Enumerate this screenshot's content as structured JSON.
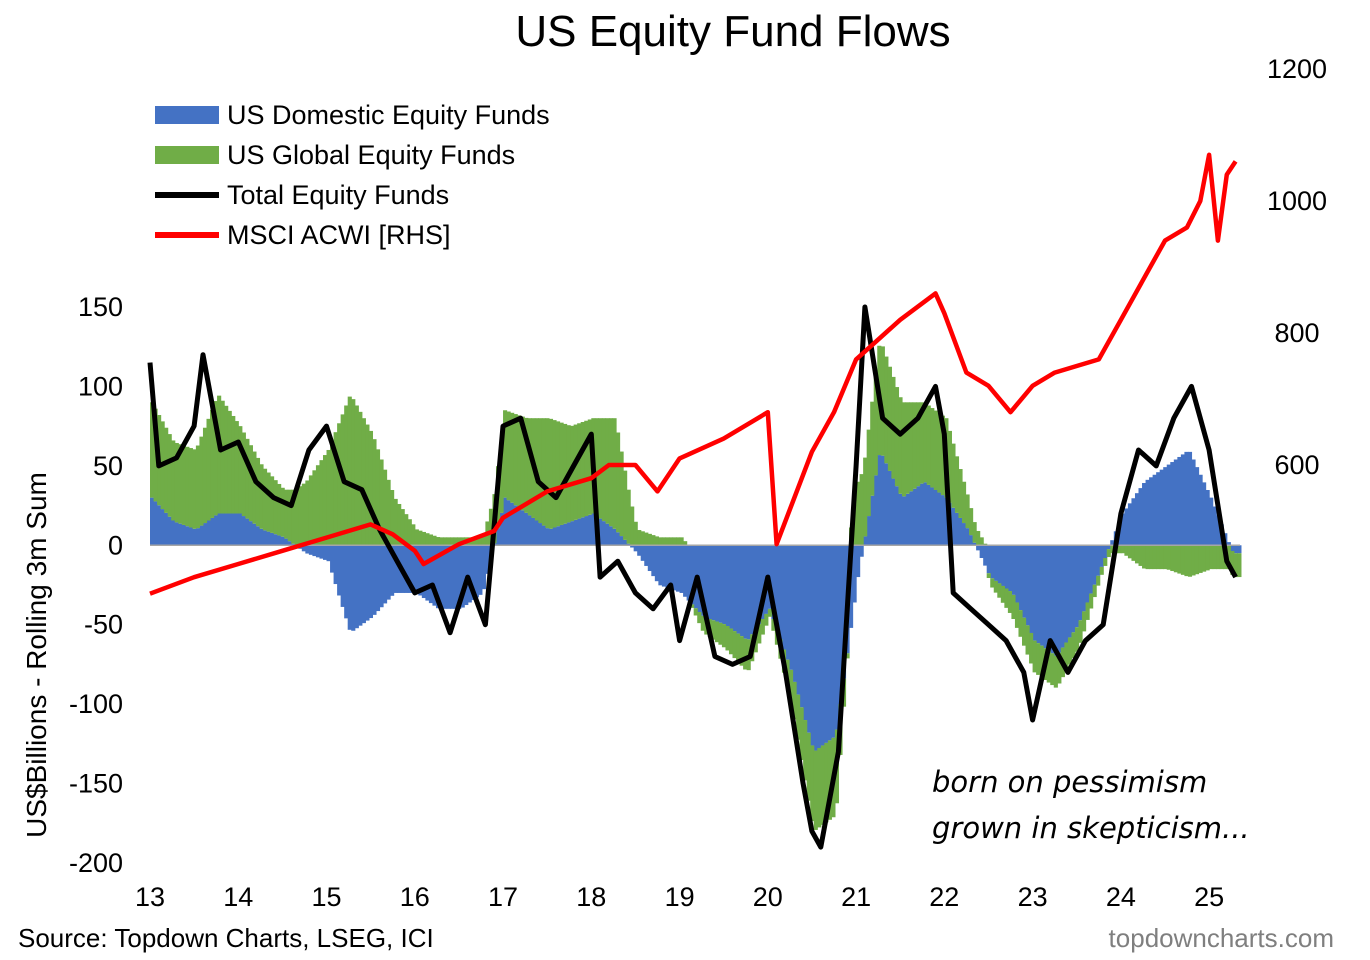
{
  "chart_data": {
    "type": "bar",
    "title": "US Equity Fund Flows",
    "ylabel": "US$Billions - Rolling 3m Sum",
    "ylim": [
      -200,
      150
    ],
    "y_ticks": [
      150,
      100,
      50,
      0,
      -50,
      -100,
      -150,
      -200
    ],
    "y2lim": [
      400,
      1200
    ],
    "y2_ticks": [
      1200,
      1000,
      800,
      600
    ],
    "xlim": [
      2013,
      2025.35
    ],
    "x_ticks": [
      13,
      14,
      15,
      16,
      17,
      18,
      19,
      20,
      21,
      22,
      23,
      24,
      25
    ],
    "legend_position": "top-left",
    "grid": false,
    "legend": [
      {
        "name": "US Domestic Equity Funds",
        "kind": "bar",
        "color": "#4472c4"
      },
      {
        "name": "US Global Equity Funds",
        "kind": "bar",
        "color": "#70ad47"
      },
      {
        "name": "Total Equity Funds",
        "kind": "line",
        "color": "#000000"
      },
      {
        "name": "MSCI ACWI [RHS]",
        "kind": "line",
        "color": "#ff0000"
      }
    ],
    "series": [
      {
        "name": "US Domestic Equity Funds",
        "type": "bar",
        "axis": "left",
        "color": "#4472c4",
        "x": [
          2013.0,
          2013.25,
          2013.5,
          2013.75,
          2014.0,
          2014.25,
          2014.5,
          2014.75,
          2015.0,
          2015.25,
          2015.5,
          2015.75,
          2016.0,
          2016.25,
          2016.5,
          2016.75,
          2017.0,
          2017.25,
          2017.5,
          2017.75,
          2018.0,
          2018.25,
          2018.5,
          2018.75,
          2019.0,
          2019.25,
          2019.5,
          2019.75,
          2020.0,
          2020.25,
          2020.5,
          2020.75,
          2021.0,
          2021.25,
          2021.5,
          2021.75,
          2022.0,
          2022.25,
          2022.5,
          2022.75,
          2023.0,
          2023.25,
          2023.5,
          2023.75,
          2024.0,
          2024.25,
          2024.5,
          2024.75,
          2025.0,
          2025.25
        ],
        "y": [
          30,
          15,
          10,
          20,
          20,
          10,
          5,
          -5,
          -10,
          -55,
          -45,
          -30,
          -30,
          -40,
          -40,
          -30,
          30,
          20,
          10,
          15,
          20,
          10,
          -5,
          -25,
          -30,
          -45,
          -50,
          -60,
          -40,
          -80,
          -130,
          -120,
          -20,
          60,
          30,
          40,
          30,
          10,
          -20,
          -30,
          -60,
          -70,
          -50,
          -15,
          20,
          40,
          50,
          60,
          30,
          -5
        ]
      },
      {
        "name": "US Global Equity Funds",
        "type": "bar",
        "axis": "left",
        "color": "#70ad47",
        "x": [
          2013.0,
          2013.25,
          2013.5,
          2013.75,
          2014.0,
          2014.25,
          2014.5,
          2014.75,
          2015.0,
          2015.25,
          2015.5,
          2015.75,
          2016.0,
          2016.25,
          2016.5,
          2016.75,
          2017.0,
          2017.25,
          2017.5,
          2017.75,
          2018.0,
          2018.25,
          2018.5,
          2018.75,
          2019.0,
          2019.25,
          2019.5,
          2019.75,
          2020.0,
          2020.25,
          2020.5,
          2020.75,
          2021.0,
          2021.25,
          2021.5,
          2021.75,
          2022.0,
          2022.25,
          2022.5,
          2022.75,
          2023.0,
          2023.25,
          2023.5,
          2023.75,
          2024.0,
          2024.25,
          2024.5,
          2024.75,
          2025.0,
          2025.25
        ],
        "y": [
          60,
          50,
          50,
          75,
          55,
          40,
          30,
          40,
          60,
          95,
          70,
          30,
          10,
          5,
          5,
          5,
          55,
          60,
          70,
          60,
          60,
          70,
          10,
          5,
          5,
          -10,
          -15,
          -20,
          -5,
          -20,
          -50,
          -50,
          40,
          70,
          60,
          50,
          50,
          20,
          -5,
          -15,
          -20,
          -20,
          -15,
          -5,
          -5,
          -15,
          -15,
          -20,
          -15,
          -15
        ]
      },
      {
        "name": "Total Equity Funds",
        "type": "line",
        "axis": "left",
        "color": "#000000",
        "x": [
          2013.0,
          2013.1,
          2013.3,
          2013.5,
          2013.6,
          2013.8,
          2014.0,
          2014.2,
          2014.4,
          2014.6,
          2014.8,
          2015.0,
          2015.2,
          2015.4,
          2015.6,
          2015.8,
          2016.0,
          2016.2,
          2016.4,
          2016.6,
          2016.8,
          2017.0,
          2017.2,
          2017.4,
          2017.6,
          2017.8,
          2018.0,
          2018.1,
          2018.3,
          2018.5,
          2018.7,
          2018.9,
          2019.0,
          2019.2,
          2019.4,
          2019.6,
          2019.8,
          2020.0,
          2020.2,
          2020.4,
          2020.5,
          2020.6,
          2020.8,
          2021.0,
          2021.1,
          2021.3,
          2021.5,
          2021.7,
          2021.9,
          2022.0,
          2022.1,
          2022.3,
          2022.5,
          2022.7,
          2022.9,
          2023.0,
          2023.2,
          2023.4,
          2023.6,
          2023.8,
          2024.0,
          2024.2,
          2024.4,
          2024.6,
          2024.8,
          2025.0,
          2025.2,
          2025.3
        ],
        "y": [
          115,
          50,
          55,
          75,
          120,
          60,
          65,
          40,
          30,
          25,
          60,
          75,
          40,
          35,
          10,
          -10,
          -30,
          -25,
          -55,
          -20,
          -50,
          75,
          80,
          40,
          30,
          50,
          70,
          -20,
          -10,
          -30,
          -40,
          -25,
          -60,
          -20,
          -70,
          -75,
          -70,
          -20,
          -80,
          -150,
          -180,
          -190,
          -130,
          50,
          150,
          80,
          70,
          80,
          100,
          70,
          -30,
          -40,
          -50,
          -60,
          -80,
          -110,
          -60,
          -80,
          -60,
          -50,
          20,
          60,
          50,
          80,
          100,
          60,
          -10,
          -20
        ]
      },
      {
        "name": "MSCI ACWI [RHS]",
        "type": "line",
        "axis": "right",
        "color": "#ff0000",
        "x": [
          2013.0,
          2013.5,
          2014.0,
          2014.5,
          2015.0,
          2015.5,
          2015.75,
          2016.0,
          2016.1,
          2016.5,
          2016.9,
          2017.0,
          2017.5,
          2018.0,
          2018.2,
          2018.5,
          2018.75,
          2019.0,
          2019.5,
          2020.0,
          2020.1,
          2020.5,
          2020.75,
          2021.0,
          2021.5,
          2021.9,
          2022.0,
          2022.25,
          2022.5,
          2022.75,
          2023.0,
          2023.25,
          2023.5,
          2023.75,
          2024.0,
          2024.25,
          2024.5,
          2024.75,
          2024.9,
          2025.0,
          2025.1,
          2025.2,
          2025.3
        ],
        "y": [
          405,
          430,
          450,
          470,
          490,
          510,
          495,
          470,
          450,
          480,
          500,
          520,
          560,
          580,
          600,
          600,
          560,
          610,
          640,
          680,
          480,
          620,
          680,
          760,
          820,
          860,
          830,
          740,
          720,
          680,
          720,
          740,
          750,
          760,
          820,
          880,
          940,
          960,
          1000,
          1070,
          940,
          1040,
          1060
        ]
      }
    ],
    "annotations": [
      "born on pessimism",
      "grown in skepticism..."
    ],
    "source": "Source: Topdown Charts, LSEG, ICI",
    "brand": "topdowncharts.com"
  }
}
